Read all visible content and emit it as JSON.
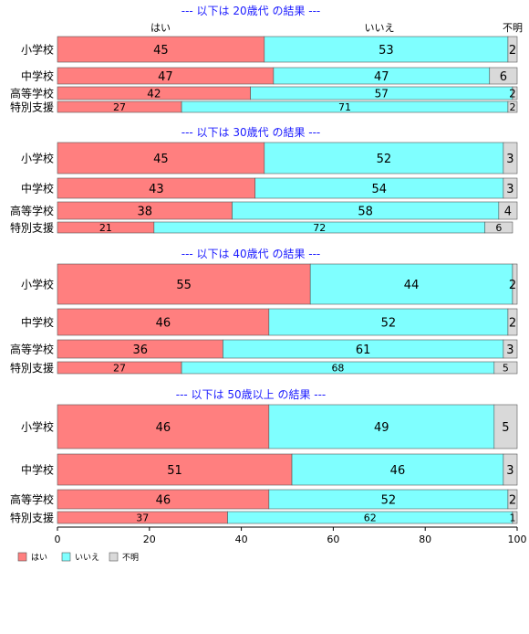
{
  "chart_data": {
    "type": "bar",
    "orientation": "horizontal",
    "stacked": true,
    "xlim": [
      0,
      100
    ],
    "x_ticks": [
      "0",
      "20",
      "40",
      "60",
      "80",
      "100"
    ],
    "top_labels": [
      "はい",
      "いいえ",
      "不明"
    ],
    "legend": {
      "position": "bottom-left",
      "items": [
        {
          "label": "はい",
          "color": "#ff7f7f"
        },
        {
          "label": "いいえ",
          "color": "#7fffff"
        },
        {
          "label": "不明",
          "color": "#d9d9d9"
        }
      ]
    },
    "series_colors": [
      "#ff7f7f",
      "#7fffff",
      "#d9d9d9"
    ],
    "title_color": "#1a1aff",
    "panels": [
      {
        "title": "--- 以下は 20歳代 の結果 ---",
        "rows": [
          {
            "category": "小学校",
            "values": [
              45,
              53,
              2
            ]
          },
          {
            "category": "中学校",
            "values": [
              47,
              47,
              6
            ]
          },
          {
            "category": "高等学校",
            "values": [
              42,
              57,
              2
            ]
          },
          {
            "category": "特別支援",
            "values": [
              27,
              71,
              2
            ]
          }
        ]
      },
      {
        "title": "--- 以下は 30歳代 の結果 ---",
        "rows": [
          {
            "category": "小学校",
            "values": [
              45,
              52,
              3
            ]
          },
          {
            "category": "中学校",
            "values": [
              43,
              54,
              3
            ]
          },
          {
            "category": "高等学校",
            "values": [
              38,
              58,
              4
            ]
          },
          {
            "category": "特別支援",
            "values": [
              21,
              72,
              6
            ]
          }
        ]
      },
      {
        "title": "--- 以下は 40歳代 の結果 ---",
        "rows": [
          {
            "category": "小学校",
            "values": [
              55,
              44,
              2
            ]
          },
          {
            "category": "中学校",
            "values": [
              46,
              52,
              2
            ]
          },
          {
            "category": "高等学校",
            "values": [
              36,
              61,
              3
            ]
          },
          {
            "category": "特別支援",
            "values": [
              27,
              68,
              5
            ]
          }
        ]
      },
      {
        "title": "--- 以下は 50歳以上 の結果 ---",
        "rows": [
          {
            "category": "小学校",
            "values": [
              46,
              49,
              5
            ]
          },
          {
            "category": "中学校",
            "values": [
              51,
              46,
              3
            ]
          },
          {
            "category": "高等学校",
            "values": [
              46,
              52,
              2
            ]
          },
          {
            "category": "特別支援",
            "values": [
              37,
              62,
              1
            ]
          }
        ]
      }
    ]
  }
}
